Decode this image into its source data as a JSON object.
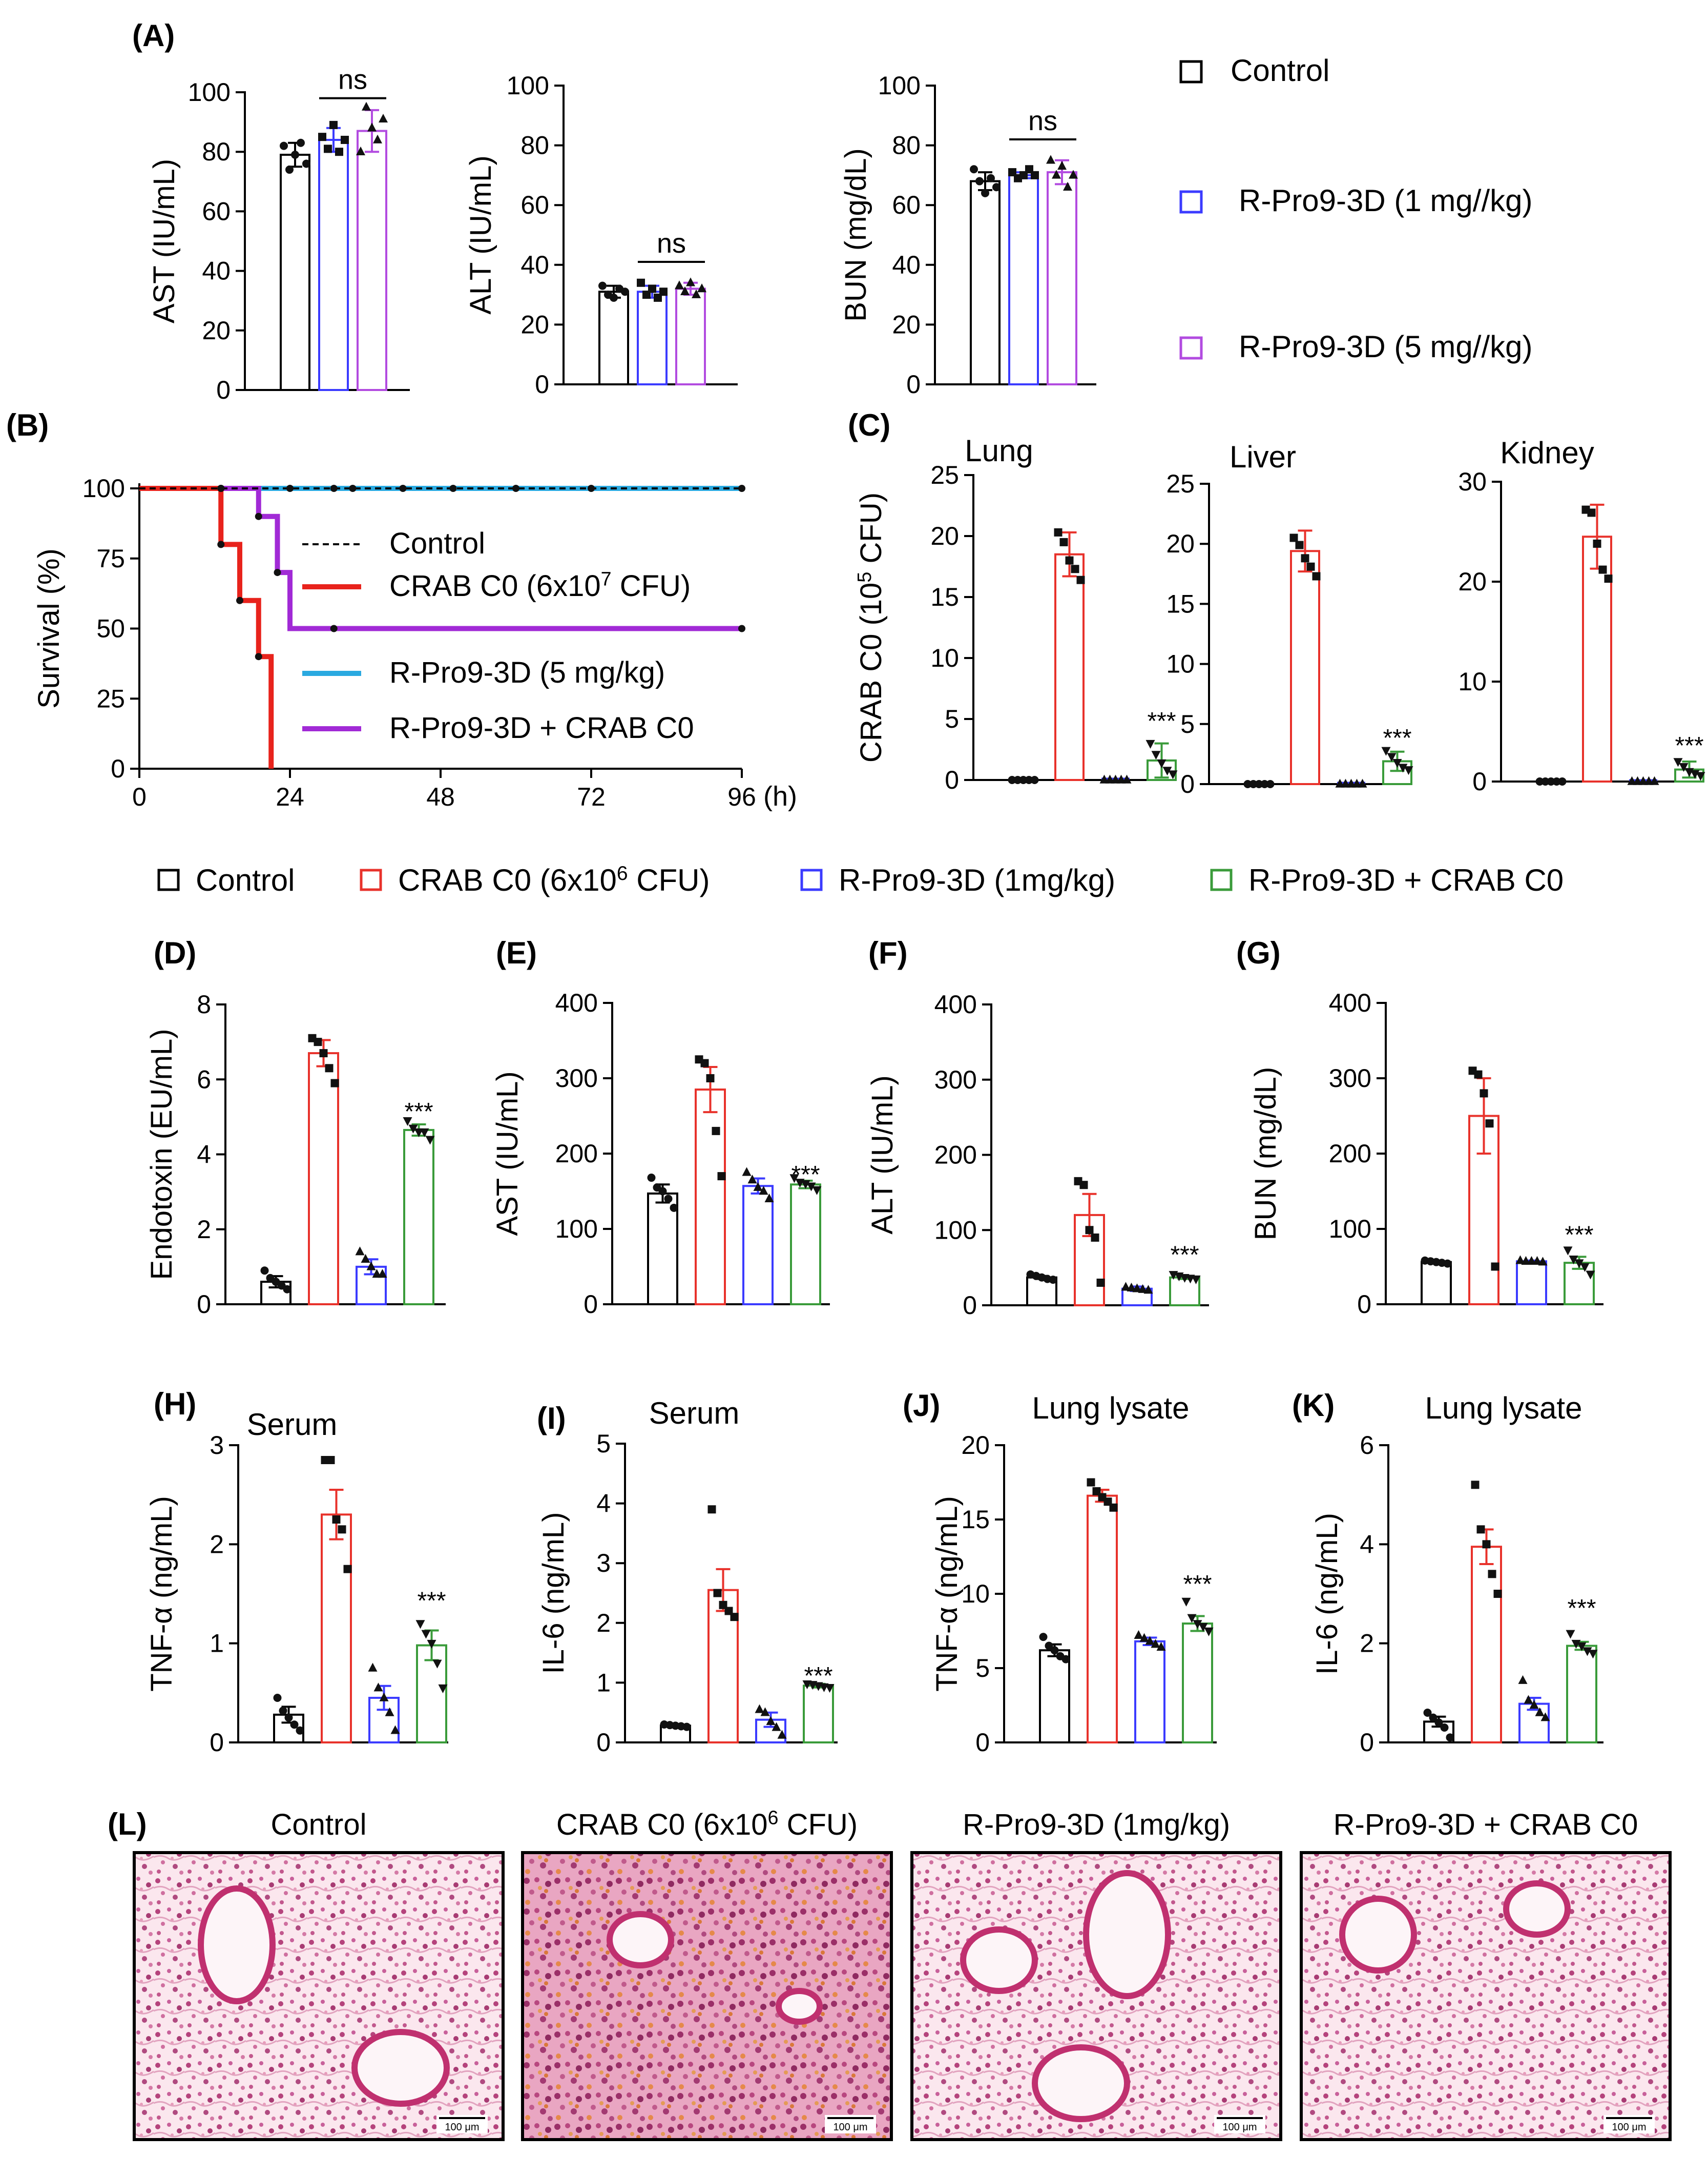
{
  "colors": {
    "control": "#000000",
    "crab": "#e8322b",
    "rpro": "#3b3bff",
    "rpro5": "#b24be0",
    "combo": "#3a9b3a",
    "survival_crab": "#e8231c",
    "survival_rpro": "#2aa9e0",
    "survival_combo": "#a12ad6"
  },
  "legend_A": [
    {
      "label": "Control",
      "color": "#000000"
    },
    {
      "label": "R-Pro9-3D (1 mg//kg)",
      "color": "#3b3bff"
    },
    {
      "label": "R-Pro9-3D (5 mg//kg)",
      "color": "#b24be0"
    }
  ],
  "legend_main": [
    {
      "label": "Control",
      "color": "#000000"
    },
    {
      "label": "CRAB C0 (6x10",
      "sup": "6",
      "after": " CFU)",
      "color": "#e8322b"
    },
    {
      "label": "R-Pro9-3D (1mg/kg)",
      "color": "#3b3bff"
    },
    {
      "label": "R-Pro9-3D + CRAB C0",
      "color": "#3a9b3a"
    }
  ],
  "histology": {
    "panel_label": "(L)",
    "titles": [
      {
        "text": "Control"
      },
      {
        "text": "CRAB C0 (6x10",
        "sup": "6",
        "after": " CFU)"
      },
      {
        "text": "R-Pro9-3D (1mg/kg)"
      },
      {
        "text": "R-Pro9-3D + CRAB C0"
      }
    ],
    "scale_bar": "100 μm"
  },
  "chart_data": [
    {
      "id": "A1",
      "type": "bar",
      "panel_label": "(A)",
      "ylabel": "AST (IU/mL)",
      "ylim": [
        0,
        100
      ],
      "ticks": [
        0,
        20,
        40,
        60,
        80,
        100
      ],
      "groups": [
        "control",
        "rpro",
        "rpro5"
      ],
      "values": [
        79,
        84,
        87
      ],
      "errors": [
        4,
        4,
        7
      ],
      "points": [
        [
          82,
          74,
          79,
          83,
          76
        ],
        [
          85,
          81,
          89,
          80,
          84
        ],
        [
          80,
          95,
          88,
          84,
          91
        ]
      ],
      "annotation": {
        "text": "ns",
        "between": [
          1,
          2
        ],
        "y": 98
      }
    },
    {
      "id": "A2",
      "type": "bar",
      "ylabel": "ALT (IU/mL)",
      "ylim": [
        0,
        100
      ],
      "ticks": [
        0,
        20,
        40,
        60,
        80,
        100
      ],
      "groups": [
        "control",
        "rpro",
        "rpro5"
      ],
      "values": [
        31,
        31,
        32
      ],
      "errors": [
        2,
        2,
        2
      ],
      "points": [
        [
          33,
          30,
          29,
          32,
          31
        ],
        [
          34,
          30,
          32,
          29,
          31
        ],
        [
          33,
          31,
          34,
          30,
          32
        ]
      ],
      "annotation": {
        "text": "ns",
        "between": [
          1,
          2
        ],
        "y": 41
      }
    },
    {
      "id": "A3",
      "type": "bar",
      "ylabel": "BUN (mg/dL)",
      "ylim": [
        0,
        100
      ],
      "ticks": [
        0,
        20,
        40,
        60,
        80,
        100
      ],
      "groups": [
        "control",
        "rpro",
        "rpro5"
      ],
      "values": [
        68,
        70,
        71
      ],
      "errors": [
        3,
        1,
        4
      ],
      "points": [
        [
          72,
          68,
          64,
          69,
          66
        ],
        [
          71,
          69,
          70,
          72,
          70
        ],
        [
          75,
          70,
          73,
          66,
          70
        ]
      ],
      "annotation": {
        "text": "ns",
        "between": [
          1,
          2
        ],
        "y": 82
      }
    },
    {
      "id": "B",
      "type": "line",
      "panel_label": "(B)",
      "ylabel": "Survival (%)",
      "xlabel": "(h)",
      "xlim": [
        0,
        96
      ],
      "ylim": [
        0,
        100
      ],
      "xticks": [
        0,
        24,
        48,
        72,
        96
      ],
      "yticks": [
        0,
        25,
        50,
        75,
        100
      ],
      "series": [
        {
          "name": "Control",
          "style": "dashed",
          "color": "#000000",
          "x": [
            0,
            96
          ],
          "y": [
            100,
            100
          ]
        },
        {
          "name": "CRAB C0 (6x10",
          "sup": "7",
          "after": " CFU)",
          "color": "#e8231c",
          "x": [
            0,
            13,
            13,
            16,
            16,
            19,
            19,
            21,
            21
          ],
          "y": [
            100,
            100,
            80,
            80,
            60,
            60,
            40,
            40,
            0
          ],
          "markers": [
            [
              13,
              100
            ],
            [
              13,
              80
            ],
            [
              16,
              60
            ],
            [
              19,
              40
            ]
          ]
        },
        {
          "name": "R-Pro9-3D (5 mg/kg)",
          "color": "#2aa9e0",
          "x": [
            0,
            96
          ],
          "y": [
            100,
            100
          ]
        },
        {
          "name": "R-Pro9-3D + CRAB C0",
          "color": "#a12ad6",
          "x": [
            0,
            19,
            19,
            22,
            22,
            24,
            24,
            96
          ],
          "y": [
            100,
            100,
            90,
            90,
            70,
            70,
            50,
            50
          ],
          "markers": [
            [
              19,
              90
            ],
            [
              22,
              70
            ],
            [
              31,
              50
            ],
            [
              96,
              50
            ]
          ]
        }
      ],
      "control_markers": [
        [
          13,
          100
        ],
        [
          24,
          100
        ],
        [
          31,
          100
        ],
        [
          34,
          100
        ],
        [
          42,
          100
        ],
        [
          50,
          100
        ],
        [
          60,
          100
        ],
        [
          72,
          100
        ],
        [
          96,
          100
        ]
      ]
    },
    {
      "id": "C1",
      "type": "bar",
      "panel_label": "(C)",
      "title": "Lung",
      "ylabel": "CRAB C0 (10",
      "ylabel_sup": "5",
      "ylabel_after": " CFU)",
      "ylim": [
        0,
        25
      ],
      "ticks": [
        0,
        5,
        10,
        15,
        20,
        25
      ],
      "groups": [
        "control",
        "crab",
        "rpro",
        "combo"
      ],
      "values": [
        0,
        18.5,
        0,
        1.6
      ],
      "errors": [
        0,
        1.8,
        0,
        1.4
      ],
      "points": [
        [
          0,
          0,
          0,
          0,
          0
        ],
        [
          20.3,
          19.5,
          18.0,
          17.3,
          16.4
        ],
        [
          0,
          0,
          0,
          0,
          0
        ],
        [
          3.0,
          2.1,
          1.4,
          0.8,
          0.5
        ]
      ],
      "annotation": {
        "text": "***",
        "on": 3,
        "y": 5.0
      }
    },
    {
      "id": "C2",
      "type": "bar",
      "title": "Liver",
      "ylim": [
        0,
        25
      ],
      "ticks": [
        0,
        5,
        10,
        15,
        20,
        25
      ],
      "groups": [
        "control",
        "crab",
        "rpro",
        "combo"
      ],
      "values": [
        0,
        19.4,
        0,
        1.9
      ],
      "errors": [
        0,
        1.7,
        0,
        0.8
      ],
      "points": [
        [
          0,
          0,
          0,
          0,
          0
        ],
        [
          20.5,
          19.9,
          18.8,
          18.1,
          17.3
        ],
        [
          0,
          0,
          0,
          0,
          0
        ],
        [
          2.8,
          2.3,
          1.8,
          1.4,
          1.2
        ]
      ],
      "annotation": {
        "text": "***",
        "on": 3,
        "y": 4.0
      }
    },
    {
      "id": "C3",
      "type": "bar",
      "title": "Kidney",
      "ylim": [
        0,
        30
      ],
      "ticks": [
        0,
        10,
        20,
        30
      ],
      "groups": [
        "control",
        "crab",
        "rpro",
        "combo"
      ],
      "values": [
        0,
        24.5,
        0,
        1.2
      ],
      "errors": [
        0,
        3.2,
        0,
        0.8
      ],
      "points": [
        [
          0,
          0,
          0,
          0,
          0
        ],
        [
          27.2,
          26.9,
          23.8,
          21.2,
          20.3
        ],
        [
          0,
          0,
          0,
          0,
          0
        ],
        [
          2.0,
          1.5,
          1.0,
          0.8,
          0.6
        ]
      ],
      "annotation": {
        "text": "***",
        "on": 3,
        "y": 3.8
      }
    },
    {
      "id": "D",
      "type": "bar",
      "panel_label": "(D)",
      "ylabel": "Endotoxin (EU/mL)",
      "ylim": [
        0,
        8
      ],
      "ticks": [
        0,
        2,
        4,
        6,
        8
      ],
      "groups": [
        "control",
        "crab",
        "rpro",
        "combo"
      ],
      "values": [
        0.6,
        6.7,
        1.0,
        4.65
      ],
      "errors": [
        0.15,
        0.35,
        0.2,
        0.15
      ],
      "points": [
        [
          0.9,
          0.7,
          0.6,
          0.5,
          0.4
        ],
        [
          7.1,
          7.0,
          6.7,
          6.3,
          5.9
        ],
        [
          1.4,
          1.2,
          1.0,
          0.8,
          0.8
        ],
        [
          4.9,
          4.7,
          4.6,
          4.6,
          4.4
        ]
      ],
      "annotation": {
        "text": "***",
        "on": 3,
        "y": 5.2
      }
    },
    {
      "id": "E",
      "type": "bar",
      "panel_label": "(E)",
      "ylabel": "AST (IU/mL)",
      "ylim": [
        0,
        400
      ],
      "ticks": [
        0,
        100,
        200,
        300,
        400
      ],
      "groups": [
        "control",
        "crab",
        "rpro",
        "combo"
      ],
      "values": [
        147,
        285,
        157,
        159
      ],
      "errors": [
        12,
        30,
        10,
        5
      ],
      "points": [
        [
          168,
          155,
          150,
          140,
          128
        ],
        [
          325,
          320,
          300,
          230,
          170
        ],
        [
          175,
          165,
          155,
          150,
          140
        ],
        [
          168,
          162,
          160,
          157,
          152
        ]
      ],
      "annotation": {
        "text": "***",
        "on": 3,
        "y": 175
      }
    },
    {
      "id": "F",
      "type": "bar",
      "panel_label": "(F)",
      "ylabel": "ALT (IU/mL)",
      "ylim": [
        0,
        400
      ],
      "ticks": [
        0,
        100,
        200,
        300,
        400
      ],
      "groups": [
        "control",
        "crab",
        "rpro",
        "combo"
      ],
      "values": [
        37,
        120,
        22,
        37
      ],
      "errors": [
        2,
        28,
        3,
        2
      ],
      "points": [
        [
          41,
          39,
          37,
          35,
          34
        ],
        [
          165,
          160,
          100,
          90,
          30
        ],
        [
          24,
          23,
          22,
          21,
          20
        ],
        [
          41,
          39,
          37,
          36,
          35
        ]
      ],
      "annotation": {
        "text": "***",
        "on": 3,
        "y": 70
      }
    },
    {
      "id": "G",
      "type": "bar",
      "panel_label": "(G)",
      "ylabel": "BUN (mg/dL)",
      "ylim": [
        0,
        400
      ],
      "ticks": [
        0,
        100,
        200,
        300,
        400
      ],
      "groups": [
        "control",
        "crab",
        "rpro",
        "combo"
      ],
      "values": [
        56,
        250,
        57,
        55
      ],
      "errors": [
        2,
        50,
        1,
        8
      ],
      "points": [
        [
          58,
          57,
          56,
          55,
          54
        ],
        [
          310,
          305,
          280,
          240,
          50
        ],
        [
          58,
          57,
          57,
          57,
          56
        ],
        [
          72,
          60,
          55,
          50,
          40
        ]
      ],
      "annotation": {
        "text": "***",
        "on": 3,
        "y": 95
      }
    },
    {
      "id": "H",
      "type": "bar",
      "panel_label": "(H)",
      "title": "Serum",
      "ylabel": "TNF-α (ng/mL)",
      "ylim": [
        0,
        3
      ],
      "ticks": [
        0,
        1,
        2,
        3
      ],
      "groups": [
        "control",
        "crab",
        "rpro",
        "combo"
      ],
      "values": [
        0.28,
        2.3,
        0.45,
        0.98
      ],
      "errors": [
        0.08,
        0.25,
        0.12,
        0.15
      ],
      "points": [
        [
          0.45,
          0.32,
          0.25,
          0.18,
          0.12
        ],
        [
          2.85,
          2.85,
          2.25,
          2.15,
          1.75
        ],
        [
          0.75,
          0.55,
          0.45,
          0.3,
          0.12
        ],
        [
          1.2,
          1.1,
          1.0,
          0.8,
          0.55
        ]
      ],
      "annotation": {
        "text": "***",
        "on": 3,
        "y": 1.45
      }
    },
    {
      "id": "I",
      "type": "bar",
      "panel_label": "(I)",
      "title": "Serum",
      "ylabel": "IL-6 (ng/mL)",
      "ylim": [
        0,
        5
      ],
      "ticks": [
        0,
        1,
        2,
        3,
        4,
        5
      ],
      "groups": [
        "control",
        "crab",
        "rpro",
        "combo"
      ],
      "values": [
        0.28,
        2.55,
        0.38,
        0.95
      ],
      "errors": [
        0.02,
        0.35,
        0.12,
        0.03
      ],
      "points": [
        [
          0.3,
          0.29,
          0.28,
          0.27,
          0.26
        ],
        [
          3.9,
          2.5,
          2.3,
          2.2,
          2.1
        ],
        [
          0.55,
          0.5,
          0.35,
          0.25,
          0.12
        ],
        [
          0.98,
          0.97,
          0.95,
          0.93,
          0.92
        ]
      ],
      "annotation": {
        "text": "***",
        "on": 3,
        "y": 1.15
      }
    },
    {
      "id": "J",
      "type": "bar",
      "panel_label": "(J)",
      "title": "Lung lysate",
      "ylabel": "TNF-α (ng/mL)",
      "ylim": [
        0,
        20
      ],
      "ticks": [
        0,
        5,
        10,
        15,
        20
      ],
      "groups": [
        "control",
        "crab",
        "rpro",
        "combo"
      ],
      "values": [
        6.2,
        16.6,
        6.8,
        8.0
      ],
      "errors": [
        0.4,
        0.4,
        0.25,
        0.5
      ],
      "points": [
        [
          7.1,
          6.5,
          6.2,
          5.8,
          5.6
        ],
        [
          17.5,
          16.9,
          16.5,
          16.2,
          15.8
        ],
        [
          7.2,
          7.0,
          6.8,
          6.6,
          6.4
        ],
        [
          9.5,
          8.4,
          8.0,
          7.8,
          7.5
        ]
      ],
      "annotation": {
        "text": "***",
        "on": 3,
        "y": 10.8
      }
    },
    {
      "id": "K",
      "type": "bar",
      "panel_label": "(K)",
      "title": "Lung lysate",
      "ylabel": "IL-6 (ng/mL)",
      "ylim": [
        0,
        6
      ],
      "ticks": [
        0,
        2,
        4,
        6
      ],
      "groups": [
        "control",
        "crab",
        "rpro",
        "combo"
      ],
      "values": [
        0.42,
        3.95,
        0.78,
        1.95
      ],
      "errors": [
        0.1,
        0.35,
        0.12,
        0.08
      ],
      "points": [
        [
          0.6,
          0.5,
          0.4,
          0.3,
          0.1
        ],
        [
          5.2,
          4.3,
          4.0,
          3.4,
          3.0
        ],
        [
          1.25,
          0.85,
          0.75,
          0.6,
          0.5
        ],
        [
          2.2,
          2.0,
          1.95,
          1.85,
          1.8
        ]
      ],
      "annotation": {
        "text": "***",
        "on": 3,
        "y": 2.75
      }
    }
  ]
}
